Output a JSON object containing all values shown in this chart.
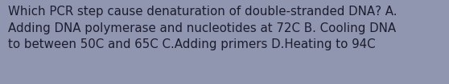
{
  "text": "Which PCR step cause denaturation of double-stranded DNA? A.\nAdding DNA polymerase and nucleotides at 72C B. Cooling DNA\nto between 50C and 65C C.Adding primers D.Heating to 94C",
  "background_color": "#9196b0",
  "text_color": "#1c1c2e",
  "font_size": 10.8,
  "fig_width": 5.58,
  "fig_height": 1.05,
  "dpi": 100
}
